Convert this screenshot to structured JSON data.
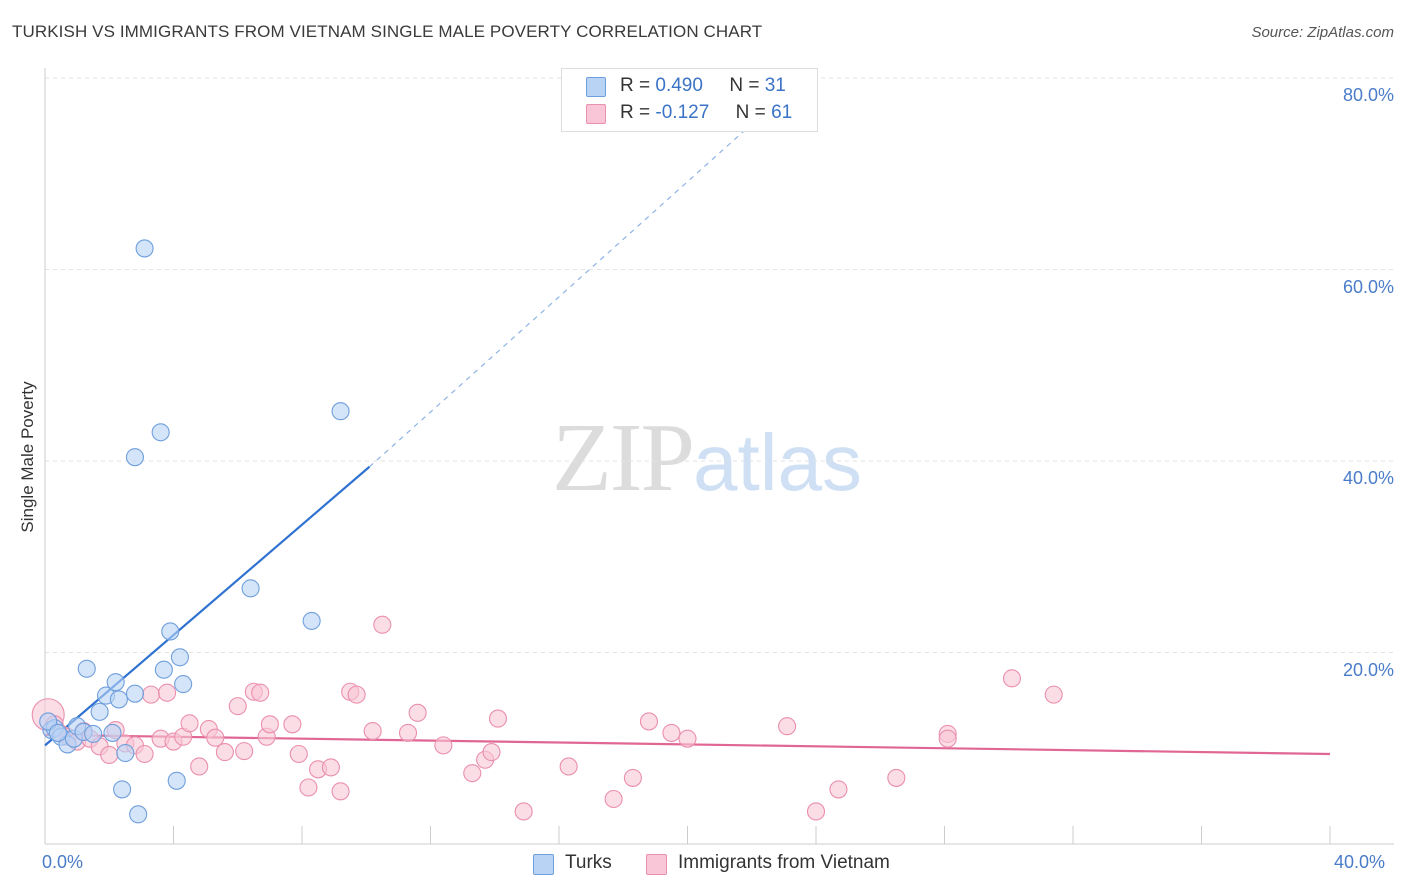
{
  "title": "TURKISH VS IMMIGRANTS FROM VIETNAM SINGLE MALE POVERTY CORRELATION CHART",
  "source": "Source: ZipAtlas.com",
  "watermark": {
    "zip": "ZIP",
    "atlas": "atlas"
  },
  "colors": {
    "turks_fill": "#b9d3f5",
    "turks_stroke": "#6f9fdc",
    "turks_line": "#2f72d0",
    "vietnam_fill": "#f8c6d6",
    "vietnam_stroke": "#ea8fae",
    "vietnam_line": "#e06794",
    "grid": "#e2e2e2",
    "axis_text": "#4a7cc9"
  },
  "legend": {
    "rows": [
      {
        "r_label": "R =",
        "r_value": "0.490",
        "n_label": "N =",
        "n_value": "31"
      },
      {
        "r_label": "R =",
        "r_value": "-0.127",
        "n_label": "N =",
        "n_value": "61"
      }
    ]
  },
  "chart_data": {
    "type": "scatter",
    "title": "TURKISH VS IMMIGRANTS FROM VIETNAM SINGLE MALE POVERTY CORRELATION CHART",
    "xlabel": "",
    "ylabel": "Single Male Poverty",
    "xlim": [
      0,
      40
    ],
    "ylim": [
      0,
      80
    ],
    "x_tick_labels": [
      "0.0%",
      "40.0%"
    ],
    "y_tick_labels": [
      "20.0%",
      "40.0%",
      "60.0%",
      "80.0%"
    ],
    "y_ticks": [
      20,
      40,
      60,
      80
    ],
    "grid": true,
    "legend_position": "top-center",
    "series": [
      {
        "name": "Turks",
        "regression": {
          "x0": 0,
          "y0": 10.3,
          "x1": 10.1,
          "y1": 39.4,
          "dashed_to_x": 23.6,
          "dashed_to_y": 80
        },
        "points": [
          [
            0.2,
            11.9
          ],
          [
            0.3,
            12.1
          ],
          [
            0.5,
            11.2
          ],
          [
            0.7,
            10.4
          ],
          [
            0.9,
            11.0
          ],
          [
            1.0,
            12.3
          ],
          [
            1.2,
            11.7
          ],
          [
            1.3,
            18.3
          ],
          [
            1.5,
            11.5
          ],
          [
            1.7,
            13.8
          ],
          [
            1.9,
            15.5
          ],
          [
            2.1,
            11.6
          ],
          [
            2.2,
            16.9
          ],
          [
            2.3,
            15.1
          ],
          [
            2.4,
            5.7
          ],
          [
            2.5,
            9.5
          ],
          [
            2.8,
            15.7
          ],
          [
            2.9,
            3.1
          ],
          [
            3.1,
            62.2
          ],
          [
            2.8,
            40.4
          ],
          [
            3.6,
            43.0
          ],
          [
            3.7,
            18.2
          ],
          [
            3.9,
            22.2
          ],
          [
            4.1,
            6.6
          ],
          [
            4.2,
            19.5
          ],
          [
            4.3,
            16.7
          ],
          [
            6.4,
            26.7
          ],
          [
            8.3,
            23.3
          ],
          [
            9.2,
            45.2
          ],
          [
            0.1,
            12.8
          ],
          [
            0.4,
            11.6
          ]
        ]
      },
      {
        "name": "Immigrants from Vietnam",
        "regression": {
          "x0": 0,
          "y0": 11.4,
          "x1": 40,
          "y1": 9.4
        },
        "points": [
          [
            0.1,
            13.5
          ],
          [
            0.3,
            12.5
          ],
          [
            0.5,
            11.5
          ],
          [
            0.7,
            11.2
          ],
          [
            1.0,
            10.7
          ],
          [
            1.2,
            11.8
          ],
          [
            1.4,
            11.0
          ],
          [
            1.7,
            10.2
          ],
          [
            2.0,
            9.3
          ],
          [
            2.2,
            11.9
          ],
          [
            2.5,
            10.5
          ],
          [
            2.8,
            10.3
          ],
          [
            3.1,
            9.4
          ],
          [
            3.3,
            15.6
          ],
          [
            3.6,
            11.0
          ],
          [
            3.8,
            15.8
          ],
          [
            4.0,
            10.7
          ],
          [
            4.3,
            11.2
          ],
          [
            4.5,
            12.6
          ],
          [
            4.8,
            8.1
          ],
          [
            5.1,
            12.0
          ],
          [
            5.3,
            11.1
          ],
          [
            5.6,
            9.6
          ],
          [
            6.0,
            14.4
          ],
          [
            6.2,
            9.7
          ],
          [
            6.5,
            15.9
          ],
          [
            6.7,
            15.8
          ],
          [
            6.9,
            11.2
          ],
          [
            7.0,
            12.5
          ],
          [
            7.7,
            12.5
          ],
          [
            7.9,
            9.4
          ],
          [
            8.2,
            5.9
          ],
          [
            8.5,
            7.8
          ],
          [
            8.9,
            8.0
          ],
          [
            9.2,
            5.5
          ],
          [
            9.5,
            15.9
          ],
          [
            9.7,
            15.6
          ],
          [
            10.2,
            11.8
          ],
          [
            10.5,
            22.9
          ],
          [
            11.3,
            11.6
          ],
          [
            11.6,
            13.7
          ],
          [
            12.4,
            10.3
          ],
          [
            13.3,
            7.4
          ],
          [
            13.7,
            8.8
          ],
          [
            13.9,
            9.6
          ],
          [
            14.1,
            13.1
          ],
          [
            14.9,
            3.4
          ],
          [
            16.3,
            8.1
          ],
          [
            17.7,
            4.7
          ],
          [
            18.3,
            6.9
          ],
          [
            18.8,
            12.8
          ],
          [
            19.5,
            11.6
          ],
          [
            20.0,
            11.0
          ],
          [
            23.1,
            12.3
          ],
          [
            24.0,
            3.4
          ],
          [
            24.7,
            5.7
          ],
          [
            26.5,
            6.9
          ],
          [
            28.1,
            11.5
          ],
          [
            28.1,
            11.0
          ],
          [
            30.1,
            17.3
          ],
          [
            31.4,
            15.6
          ]
        ]
      }
    ]
  },
  "bottom_legend": {
    "turks": "Turks",
    "vietnam": "Immigrants from Vietnam"
  }
}
